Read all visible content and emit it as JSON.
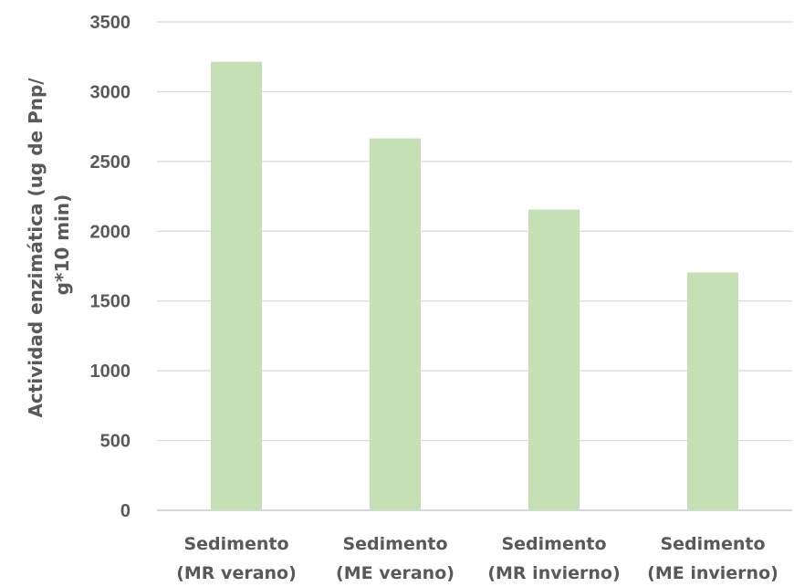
{
  "chart_data": {
    "type": "bar",
    "categories": [
      [
        "Sedimento",
        "(MR verano)"
      ],
      [
        "Sedimento",
        "(ME verano)"
      ],
      [
        "Sedimento",
        "(MR invierno)"
      ],
      [
        "Sedimento",
        "(ME invierno)"
      ]
    ],
    "values": [
      3215,
      2665,
      2155,
      1705
    ],
    "title": "",
    "xlabel": "",
    "ylabel": [
      "Actividad enzimática (ug de Pnp/",
      "g*10 min)"
    ],
    "ylim": [
      0,
      3500
    ],
    "yticks": [
      0,
      500,
      1000,
      1500,
      2000,
      2500,
      3000,
      3500
    ],
    "grid": true,
    "legend": "none",
    "colors": {
      "bar": "#c5e0b4",
      "grid": "#d9d9d9",
      "text": "#595959"
    }
  }
}
